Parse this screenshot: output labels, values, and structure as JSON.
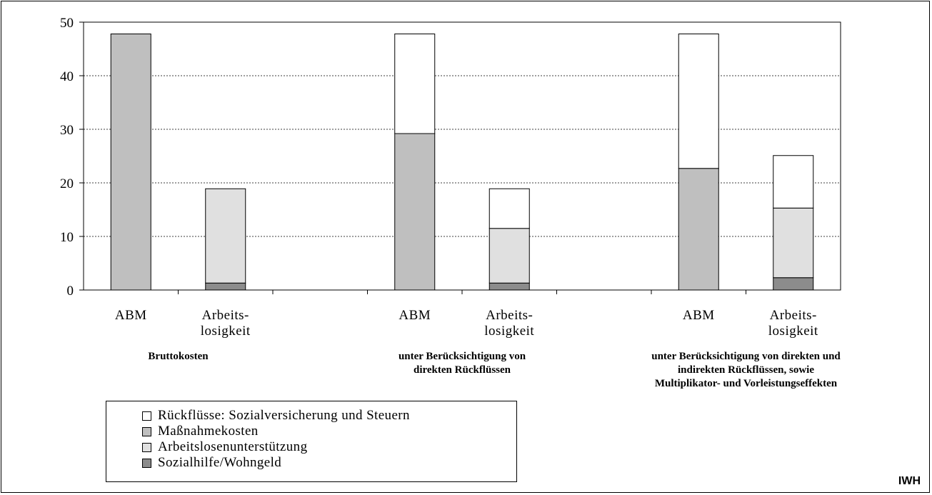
{
  "chart_data": {
    "type": "bar",
    "stacked": true,
    "ylim": [
      0,
      50
    ],
    "yticks": [
      0,
      10,
      20,
      30,
      40,
      50
    ],
    "grid": true,
    "categories": [
      "ABM",
      "Arbeits-\nlosigkeit",
      "ABM",
      "Arbeits-\nlosigkeit",
      "ABM",
      "Arbeits-\nlosigkeit"
    ],
    "groups": [
      "Bruttokosten",
      "unter Berücksichtigung von\ndirekten Rückflüssen",
      "unter Berücksichtigung von direkten und\nindirekten Rückflüssen, sowie\nMultiplikator- und Vorleistungseffekten"
    ],
    "series": [
      {
        "name": "Sozialhilfe/Wohngeld",
        "color": "#8c8c8c",
        "values": [
          0,
          1.3,
          0,
          1.3,
          0,
          2.3
        ]
      },
      {
        "name": "Arbeitslosenunterstützung",
        "color": "#e0e0e0",
        "values": [
          0,
          17.6,
          0,
          10.2,
          0,
          13.0
        ]
      },
      {
        "name": "Maßnahmekosten",
        "color": "#bfbfbf",
        "values": [
          47.8,
          0,
          29.2,
          0,
          22.7,
          0
        ]
      },
      {
        "name": "Rückflüsse: Sozialversicherung und Steuern",
        "color": "#ffffff",
        "values": [
          0,
          0,
          18.6,
          7.4,
          25.1,
          9.8
        ]
      }
    ],
    "legend_order": [
      "Rückflüsse: Sozialversicherung und Steuern",
      "Maßnahmekosten",
      "Arbeitslosenunterstützung",
      "Sozialhilfe/Wohngeld"
    ],
    "legend_position": "bottom-left"
  },
  "logo": "IWH"
}
